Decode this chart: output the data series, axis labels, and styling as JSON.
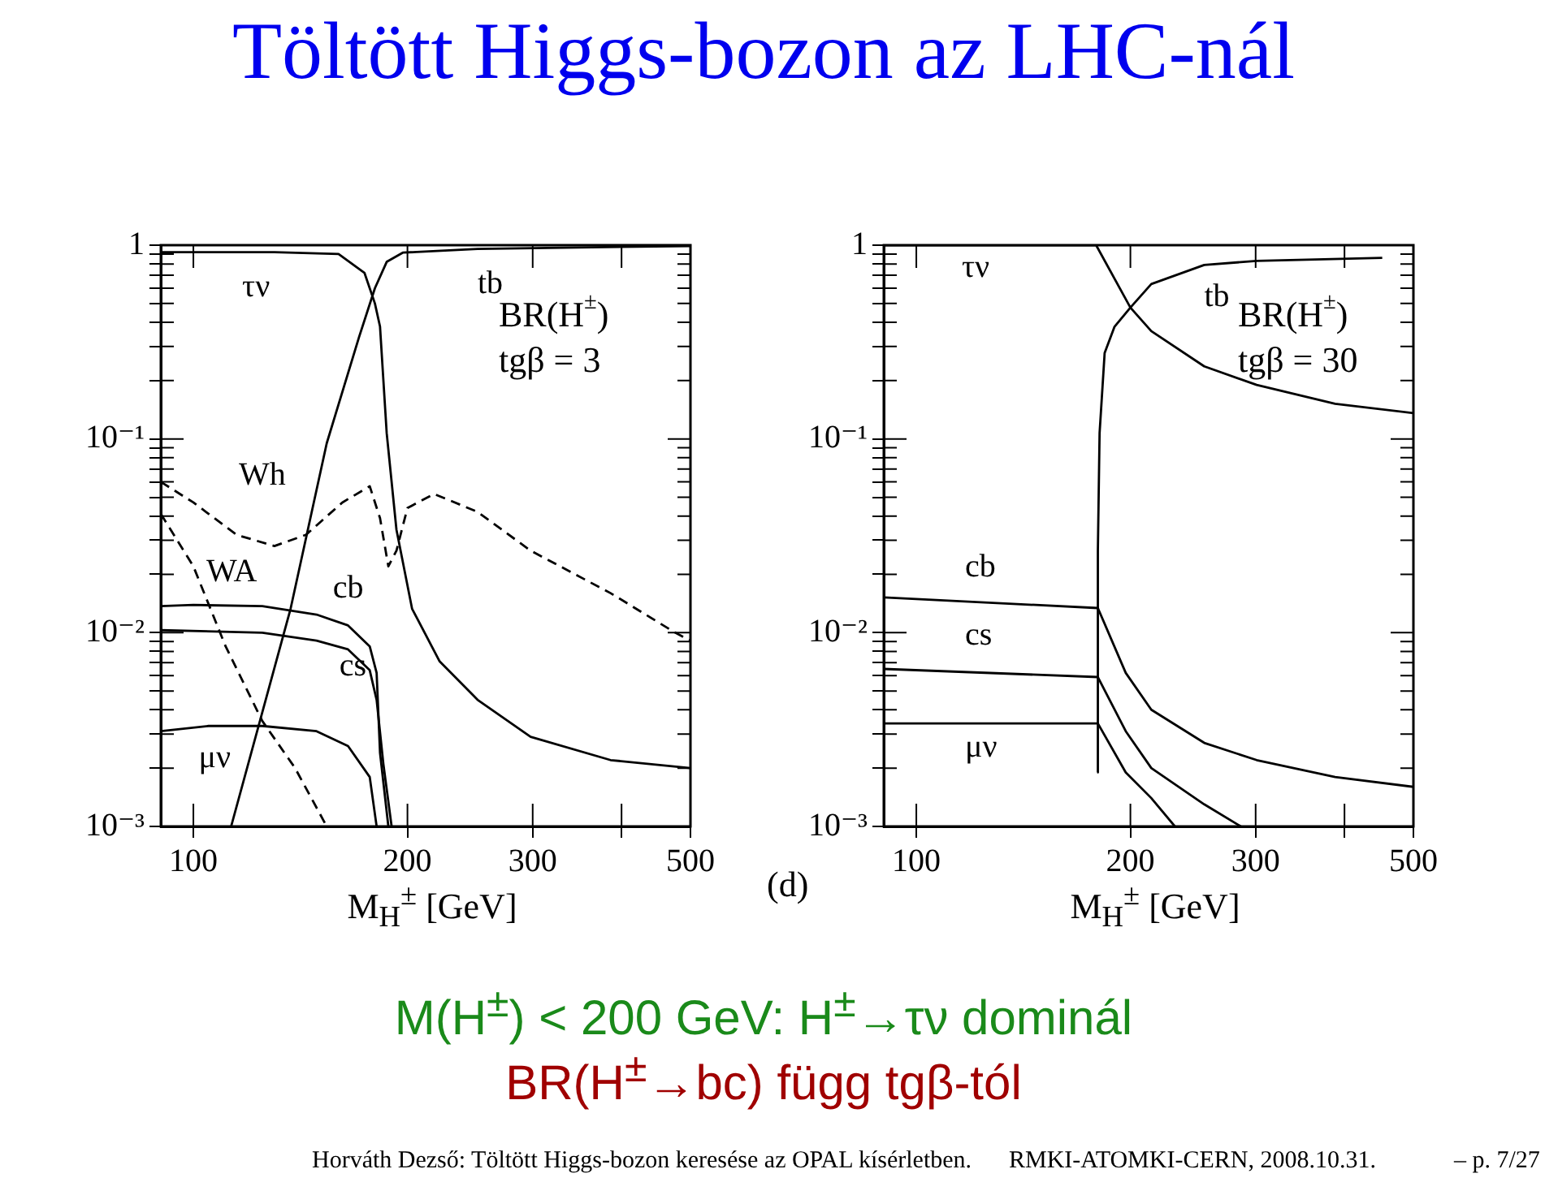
{
  "chart_data": [
    {
      "type": "line",
      "title": "Töltött Higgs-bozon az LHC-nál",
      "xlabel": "M$_{H}$$^{±}$ [GeV]",
      "log": "xy",
      "marker": "none",
      "xlim": [
        90,
        500
      ],
      "ylim": [
        0.001,
        1
      ],
      "xticks": [
        100,
        200,
        300,
        {
          "value": 400,
          "label": null
        },
        500
      ],
      "yticks": [
        {
          "value": 0.001,
          "label": "10⁻³"
        },
        {
          "value": 0.002,
          "label": null
        },
        {
          "value": 0.003,
          "label": null
        },
        {
          "value": 0.004,
          "label": null
        },
        {
          "value": 0.005,
          "label": null
        },
        {
          "value": 0.006,
          "label": null
        },
        {
          "value": 0.007,
          "label": null
        },
        {
          "value": 0.008,
          "label": null
        },
        {
          "value": 0.009,
          "label": null
        },
        {
          "value": 0.01,
          "label": "10⁻²"
        },
        {
          "value": 0.02,
          "label": null
        },
        {
          "value": 0.03,
          "label": null
        },
        {
          "value": 0.04,
          "label": null
        },
        {
          "value": 0.05,
          "label": null
        },
        {
          "value": 0.06,
          "label": null
        },
        {
          "value": 0.07,
          "label": null
        },
        {
          "value": 0.08,
          "label": null
        },
        {
          "value": 0.09,
          "label": null
        },
        {
          "value": 0.1,
          "label": "10⁻¹"
        },
        {
          "value": 0.2,
          "label": null
        },
        {
          "value": 0.3,
          "label": null
        },
        {
          "value": 0.4,
          "label": null
        },
        {
          "value": 0.5,
          "label": null
        },
        {
          "value": 0.6,
          "label": null
        },
        {
          "value": 0.7,
          "label": null
        },
        {
          "value": 0.8,
          "label": null
        },
        {
          "value": 0.9,
          "label": null
        },
        {
          "value": 1,
          "label": "1"
        }
      ],
      "annotations": [
        "BR(H$^{±}$)",
        "tgβ = 3"
      ],
      "series": [
        {
          "name": "τν",
          "color": "#000000",
          "line_style": "solid",
          "x": [
            90,
            100,
            130,
            160,
            174,
            180,
            183,
            187,
            193,
            203,
            222,
            251,
            298,
            386,
            500
          ],
          "values": [
            0.92,
            0.92,
            0.92,
            0.9,
            0.72,
            0.5,
            0.38,
            0.107,
            0.034,
            0.0133,
            0.0071,
            0.0045,
            0.0029,
            0.0022,
            0.002
          ]
        },
        {
          "name": "tb",
          "color": "#000000",
          "line_style": "solid",
          "x": [
            113,
            137,
            154,
            171,
            180,
            187,
            197,
            251,
            500
          ],
          "values": [
            0.001,
            0.0133,
            0.095,
            0.336,
            0.6,
            0.82,
            0.915,
            0.957,
            0.99
          ]
        },
        {
          "name": "Wh",
          "color": "#000000",
          "line_style": "dashed",
          "x": [
            90,
            100,
            115,
            130,
            144,
            162,
            177,
            183,
            188,
            193,
            200,
            218,
            251,
            298,
            386,
            476,
            500
          ],
          "values": [
            0.06,
            0.047,
            0.032,
            0.028,
            0.032,
            0.047,
            0.057,
            0.039,
            0.022,
            0.0265,
            0.044,
            0.052,
            0.042,
            0.0265,
            0.016,
            0.01,
            0.0091
          ]
        },
        {
          "name": "WA",
          "color": "#000000",
          "line_style": "dashed",
          "x": [
            90,
            100,
            111,
            125,
            139,
            154
          ],
          "values": [
            0.041,
            0.022,
            0.0085,
            0.0035,
            0.002,
            0.001
          ]
        },
        {
          "name": "cb",
          "color": "#000000",
          "line_style": "solid",
          "x": [
            90,
            100,
            125,
            149,
            165,
            177,
            181,
            183,
            188
          ],
          "values": [
            0.0137,
            0.0139,
            0.0137,
            0.0124,
            0.0109,
            0.0085,
            0.0062,
            0.0024,
            0.001
          ]
        },
        {
          "name": "cs",
          "color": "#000000",
          "line_style": "solid",
          "x": [
            90,
            125,
            149,
            165,
            177,
            181,
            185,
            190
          ],
          "values": [
            0.0103,
            0.01,
            0.0091,
            0.0082,
            0.0064,
            0.0045,
            0.0021,
            0.001
          ]
        },
        {
          "name": "μν",
          "color": "#000000",
          "line_style": "solid",
          "x": [
            90,
            105,
            125,
            149,
            165,
            177,
            181
          ],
          "values": [
            0.0031,
            0.0033,
            0.0033,
            0.0031,
            0.0026,
            0.0018,
            0.001
          ]
        }
      ]
    },
    {
      "type": "line",
      "xlabel": "M$_{H}$$^{±}$ [GeV]",
      "log": "xy",
      "marker": "none",
      "xlim": [
        90,
        500
      ],
      "ylim": [
        0.001,
        1
      ],
      "xticks": [
        100,
        200,
        300,
        {
          "value": 400,
          "label": null
        },
        500
      ],
      "yticks": [
        {
          "value": 0.001,
          "label": "10⁻³"
        },
        {
          "value": 0.002,
          "label": null
        },
        {
          "value": 0.003,
          "label": null
        },
        {
          "value": 0.004,
          "label": null
        },
        {
          "value": 0.005,
          "label": null
        },
        {
          "value": 0.006,
          "label": null
        },
        {
          "value": 0.007,
          "label": null
        },
        {
          "value": 0.008,
          "label": null
        },
        {
          "value": 0.009,
          "label": null
        },
        {
          "value": 0.01,
          "label": "10⁻²"
        },
        {
          "value": 0.02,
          "label": null
        },
        {
          "value": 0.03,
          "label": null
        },
        {
          "value": 0.04,
          "label": null
        },
        {
          "value": 0.05,
          "label": null
        },
        {
          "value": 0.06,
          "label": null
        },
        {
          "value": 0.07,
          "label": null
        },
        {
          "value": 0.08,
          "label": null
        },
        {
          "value": 0.09,
          "label": null
        },
        {
          "value": 0.1,
          "label": "10⁻¹"
        },
        {
          "value": 0.2,
          "label": null
        },
        {
          "value": 0.3,
          "label": null
        },
        {
          "value": 0.4,
          "label": null
        },
        {
          "value": 0.5,
          "label": null
        },
        {
          "value": 0.6,
          "label": null
        },
        {
          "value": 0.7,
          "label": null
        },
        {
          "value": 0.8,
          "label": null
        },
        {
          "value": 0.9,
          "label": null
        },
        {
          "value": 1,
          "label": "1"
        }
      ],
      "annotations": [
        "BR(H$^{±}$)",
        "tgβ = 30",
        "(d)",
        "M(H$^{±}$) < 200 GeV: H$^{±}$→τν dominál",
        "BR(H$^{±}$→bc) függ tgβ-tól",
        "Horváth Dezső:   Töltött Higgs-bozon keresése az OPAL kísérletben.",
        "RMKI-ATOMKI-CERN, 2008.10.31.",
        "– p. 7/27"
      ],
      "series": [
        {
          "name": "τν",
          "color": "#000000",
          "line_style": "solid",
          "x": [
            90,
            179,
            200,
            214,
            254,
            301,
            388,
            500
          ],
          "values": [
            1,
            1,
            0.476,
            0.36,
            0.237,
            0.19,
            0.152,
            0.136
          ]
        },
        {
          "name": "tb",
          "color": "#000000",
          "line_style": "solid",
          "x": [
            179.6,
            180,
            181,
            184,
            190,
            200,
            214,
            254,
            301,
            452
          ],
          "values": [
            0.0019,
            0.0266,
            0.107,
            0.278,
            0.38,
            0.476,
            0.63,
            0.79,
            0.83,
            0.86
          ]
        },
        {
          "name": "cb",
          "color": "#000000",
          "line_style": "solid",
          "x": [
            90,
            180,
            197,
            214,
            254,
            301,
            388,
            500
          ],
          "values": [
            0.0152,
            0.0134,
            0.0062,
            0.004,
            0.0027,
            0.0022,
            0.0018,
            0.0016
          ]
        },
        {
          "name": "cs",
          "color": "#000000",
          "line_style": "solid",
          "x": [
            90,
            180,
            197,
            214,
            254,
            286
          ],
          "values": [
            0.0065,
            0.0059,
            0.0031,
            0.002,
            0.0013,
            0.001
          ]
        },
        {
          "name": "μν",
          "color": "#000000",
          "line_style": "solid",
          "x": [
            90,
            180,
            197,
            214,
            231
          ],
          "values": [
            0.0034,
            0.0034,
            0.0019,
            0.0014,
            0.001
          ]
        }
      ]
    }
  ]
}
